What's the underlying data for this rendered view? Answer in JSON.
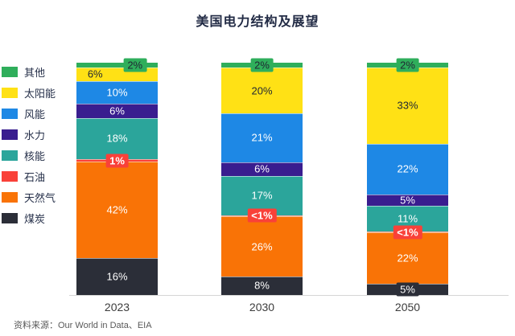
{
  "title": "美国电力结构及展望",
  "source_note": "资料来源：Our World in Data、EIA",
  "chart_data": {
    "type": "bar",
    "stacked": true,
    "unit": "%",
    "title": "美国电力结构及展望",
    "xlabel": "",
    "ylabel": "",
    "ylim": [
      0,
      100
    ],
    "grid": false,
    "legend_position": "left",
    "categories": [
      "2023",
      "2030",
      "2050"
    ],
    "series": [
      {
        "key": "other",
        "name": "其他",
        "color": "#2FAE5B",
        "values": [
          2,
          2,
          2
        ],
        "labels": [
          "2%",
          "2%",
          "2%"
        ],
        "text_color": "dark",
        "boxed": [
          true,
          true,
          true
        ]
      },
      {
        "key": "solar",
        "name": "太阳能",
        "color": "#FFE115",
        "values": [
          6,
          20,
          33
        ],
        "labels": [
          "6%",
          "20%",
          "33%"
        ],
        "text_color": "dark",
        "boxed": [
          false,
          false,
          false
        ]
      },
      {
        "key": "wind",
        "name": "风能",
        "color": "#1E88E5",
        "values": [
          10,
          21,
          22
        ],
        "labels": [
          "10%",
          "21%",
          "22%"
        ],
        "text_color": "white",
        "boxed": [
          false,
          false,
          false
        ]
      },
      {
        "key": "hydro",
        "name": "水力",
        "color": "#391D8F",
        "values": [
          6,
          6,
          5
        ],
        "labels": [
          "6%",
          "6%",
          "5%"
        ],
        "text_color": "white",
        "boxed": [
          false,
          false,
          false
        ]
      },
      {
        "key": "nuclear",
        "name": "核能",
        "color": "#2BA59B",
        "values": [
          18,
          17,
          11
        ],
        "labels": [
          "18%",
          "17%",
          "11%"
        ],
        "text_color": "white",
        "boxed": [
          false,
          false,
          false
        ]
      },
      {
        "key": "oil",
        "name": "石油",
        "color": "#F94139",
        "values": [
          1,
          0.5,
          0.5
        ],
        "labels": [
          "1%",
          "<1%",
          "<1%"
        ],
        "text_color": "white",
        "boxed": [
          true,
          true,
          true
        ]
      },
      {
        "key": "gas",
        "name": "天然气",
        "color": "#F97306",
        "values": [
          42,
          26,
          22
        ],
        "labels": [
          "42%",
          "26%",
          "22%"
        ],
        "text_color": "white",
        "boxed": [
          false,
          false,
          false
        ]
      },
      {
        "key": "coal",
        "name": "煤炭",
        "color": "#2B2E38",
        "values": [
          16,
          8,
          5
        ],
        "labels": [
          "16%",
          "8%",
          "5%"
        ],
        "text_color": "white",
        "boxed": [
          false,
          false,
          true
        ]
      }
    ]
  }
}
